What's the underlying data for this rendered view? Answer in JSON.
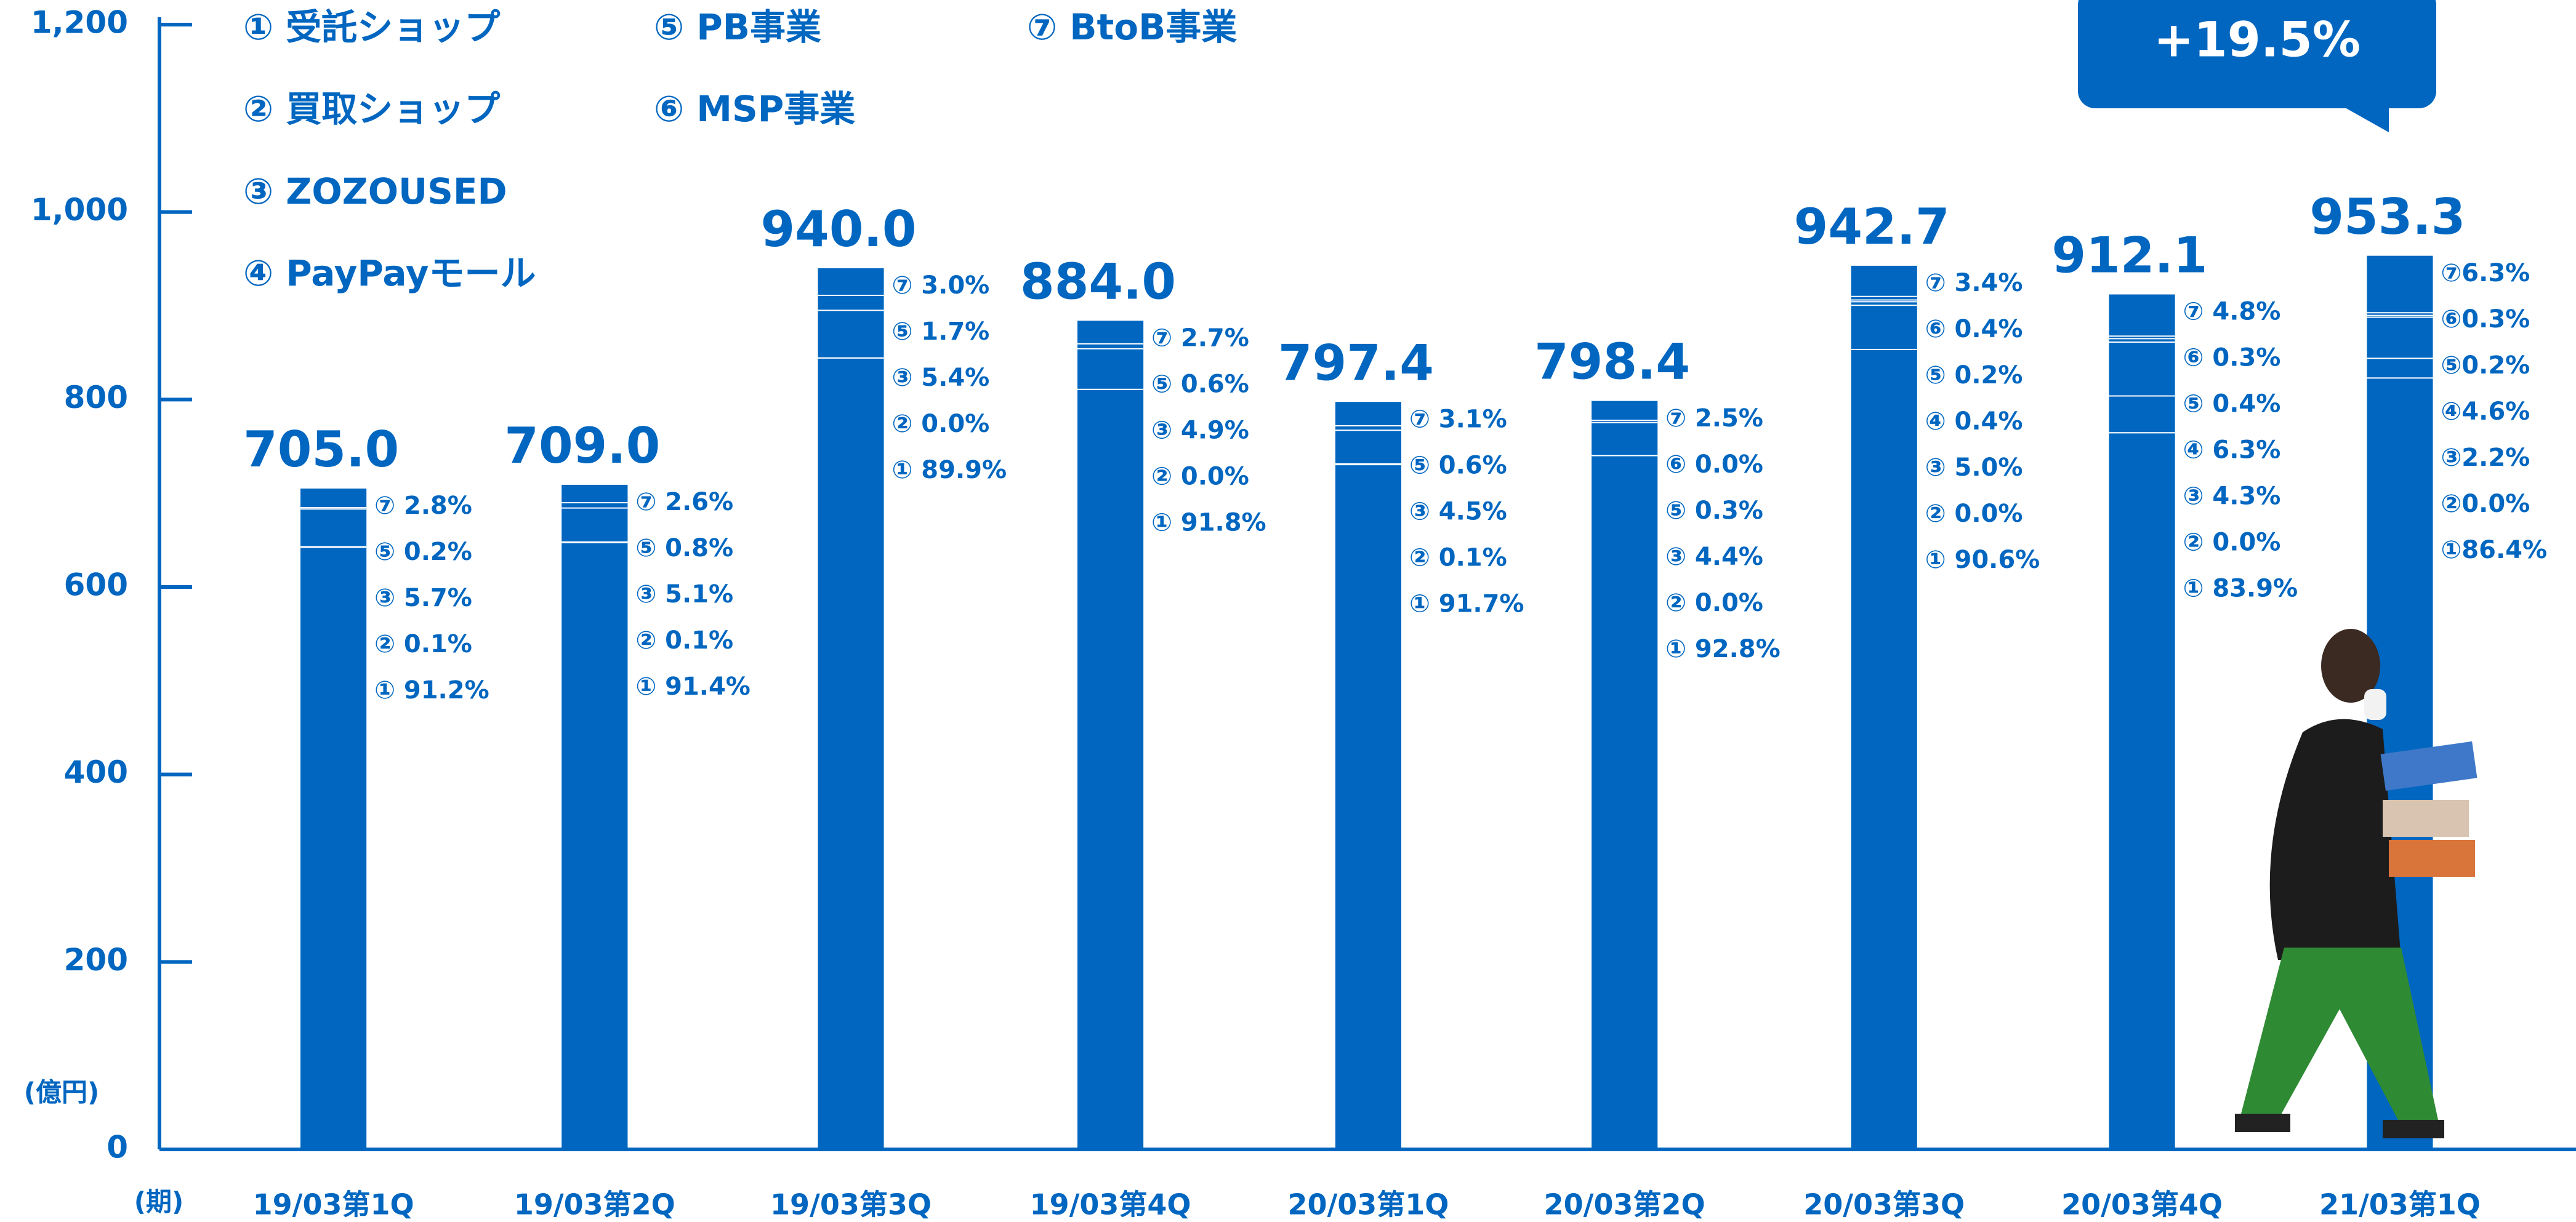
{
  "chart_data": {
    "type": "bar",
    "unit_label": "(億円)",
    "x_label": "(期)",
    "legend": [
      "① 受託ショップ",
      "② 買取ショップ",
      "③ ZOZOUSED",
      "④ PayPayモール",
      "⑤ PB事業",
      "⑥ MSP事業",
      "⑦ BtoB事業"
    ],
    "callout": "+19.5%",
    "categories": [
      "19/03第1Q",
      "19/03第2Q",
      "19/03第3Q",
      "19/03第4Q",
      "20/03第1Q",
      "20/03第2Q",
      "20/03第3Q",
      "20/03第4Q",
      "21/03第1Q"
    ],
    "values": [
      705.0,
      709.0,
      940.0,
      884.0,
      797.4,
      798.4,
      942.7,
      912.1,
      953.3
    ],
    "value_labels": [
      "705.0",
      "709.0",
      "940.0",
      "884.0",
      "797.4",
      "798.4",
      "942.7",
      "912.1",
      "953.3"
    ],
    "breakdowns": [
      [
        {
          "value": 2.8,
          "label": "⑦ 2.8%"
        },
        {
          "value": 0.2,
          "label": "⑤ 0.2%"
        },
        {
          "value": 5.7,
          "label": "③ 5.7%"
        },
        {
          "value": 0.1,
          "label": "② 0.1%"
        },
        {
          "value": 91.2,
          "label": "① 91.2%"
        }
      ],
      [
        {
          "value": 2.6,
          "label": "⑦ 2.6%"
        },
        {
          "value": 0.8,
          "label": "⑤ 0.8%"
        },
        {
          "value": 5.1,
          "label": "③ 5.1%"
        },
        {
          "value": 0.1,
          "label": "② 0.1%"
        },
        {
          "value": 91.4,
          "label": "① 91.4%"
        }
      ],
      [
        {
          "value": 3.0,
          "label": "⑦ 3.0%"
        },
        {
          "value": 1.7,
          "label": "⑤ 1.7%"
        },
        {
          "value": 5.4,
          "label": "③ 5.4%"
        },
        {
          "value": 0.0,
          "label": "② 0.0%"
        },
        {
          "value": 89.9,
          "label": "① 89.9%"
        }
      ],
      [
        {
          "value": 2.7,
          "label": "⑦ 2.7%"
        },
        {
          "value": 0.6,
          "label": "⑤ 0.6%"
        },
        {
          "value": 4.9,
          "label": "③ 4.9%"
        },
        {
          "value": 0.0,
          "label": "② 0.0%"
        },
        {
          "value": 91.8,
          "label": "① 91.8%"
        }
      ],
      [
        {
          "value": 3.1,
          "label": "⑦ 3.1%"
        },
        {
          "value": 0.6,
          "label": "⑤ 0.6%"
        },
        {
          "value": 4.5,
          "label": "③ 4.5%"
        },
        {
          "value": 0.1,
          "label": "② 0.1%"
        },
        {
          "value": 91.7,
          "label": "① 91.7%"
        }
      ],
      [
        {
          "value": 2.5,
          "label": "⑦ 2.5%"
        },
        {
          "value": 0.0,
          "label": "⑥ 0.0%"
        },
        {
          "value": 0.3,
          "label": "⑤ 0.3%"
        },
        {
          "value": 4.4,
          "label": "③ 4.4%"
        },
        {
          "value": 0.0,
          "label": "② 0.0%"
        },
        {
          "value": 92.8,
          "label": "① 92.8%"
        }
      ],
      [
        {
          "value": 3.4,
          "label": "⑦ 3.4%"
        },
        {
          "value": 0.4,
          "label": "⑥ 0.4%"
        },
        {
          "value": 0.2,
          "label": "⑤ 0.2%"
        },
        {
          "value": 0.4,
          "label": "④ 0.4%"
        },
        {
          "value": 5.0,
          "label": "③ 5.0%"
        },
        {
          "value": 0.0,
          "label": "② 0.0%"
        },
        {
          "value": 90.6,
          "label": "① 90.6%"
        }
      ],
      [
        {
          "value": 4.8,
          "label": "⑦ 4.8%"
        },
        {
          "value": 0.3,
          "label": "⑥ 0.3%"
        },
        {
          "value": 0.4,
          "label": "⑤ 0.4%"
        },
        {
          "value": 6.3,
          "label": "④ 6.3%"
        },
        {
          "value": 4.3,
          "label": "③ 4.3%"
        },
        {
          "value": 0.0,
          "label": "② 0.0%"
        },
        {
          "value": 83.9,
          "label": "① 83.9%"
        }
      ],
      [
        {
          "value": 6.3,
          "label": "⑦6.3%"
        },
        {
          "value": 0.3,
          "label": "⑥0.3%"
        },
        {
          "value": 0.2,
          "label": "⑤0.2%"
        },
        {
          "value": 4.6,
          "label": "④4.6%"
        },
        {
          "value": 2.2,
          "label": "③2.2%"
        },
        {
          "value": 0.0,
          "label": "②0.0%"
        },
        {
          "value": 86.4,
          "label": "①86.4%"
        }
      ]
    ],
    "color": "#0066c0",
    "ylim": [
      0,
      1200
    ],
    "yticks": [
      0,
      200,
      400,
      600,
      800,
      {
        "value": 1000,
        "label": "1,000"
      },
      {
        "value": 1200,
        "label": "1,200"
      }
    ]
  }
}
